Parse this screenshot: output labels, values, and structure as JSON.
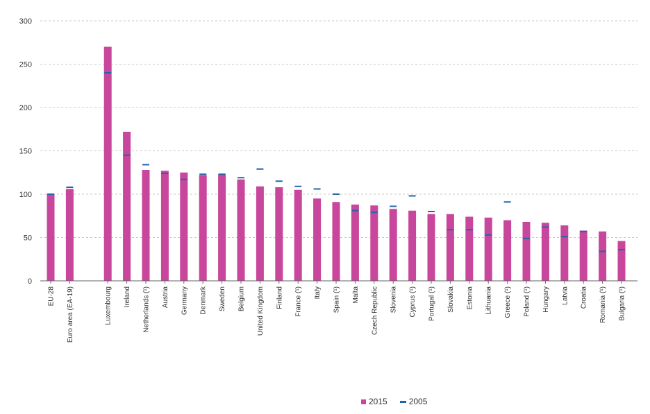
{
  "chart_data": {
    "type": "bar",
    "title": "",
    "xlabel": "",
    "ylabel": "",
    "ylim": [
      0,
      300
    ],
    "yticks": [
      0,
      50,
      100,
      150,
      200,
      250,
      300
    ],
    "grid": true,
    "legend_position": "bottom",
    "categories": [
      "EU-28",
      "Euro area (EA-19)",
      "Luxembourg",
      "Ireland",
      "Netherlands (¹)",
      "Austria",
      "Germany",
      "Denmark",
      "Sweden",
      "Belgium",
      "United Kingdom",
      "Finland",
      "France (¹)",
      "Italy",
      "Spain (¹)",
      "Malta",
      "Czech Republic",
      "Slovenia",
      "Cyprus (¹)",
      "Portugal (¹)",
      "Slovakia",
      "Estonia",
      "Lithuania",
      "Greece (¹)",
      "Poland (¹)",
      "Hungary",
      "Latvia",
      "Croatia",
      "Romania (¹)",
      "Bulgaria (¹)"
    ],
    "series": [
      {
        "name": "2015",
        "mark": "bar",
        "color": "#c8469b",
        "values": [
          100,
          106,
          270,
          172,
          128,
          127,
          125,
          122,
          123,
          117,
          109,
          108,
          105,
          95,
          91,
          88,
          87,
          83,
          81,
          77,
          77,
          74,
          73,
          70,
          68,
          67,
          64,
          58,
          57,
          46
        ]
      },
      {
        "name": "2005",
        "mark": "dash",
        "color": "#2166ac",
        "values": [
          100,
          108,
          240,
          145,
          134,
          124,
          117,
          123,
          123,
          119,
          129,
          115,
          109,
          106,
          100,
          81,
          79,
          86,
          98,
          80,
          59,
          59,
          53,
          91,
          49,
          62,
          51,
          57,
          34,
          36
        ]
      }
    ]
  }
}
